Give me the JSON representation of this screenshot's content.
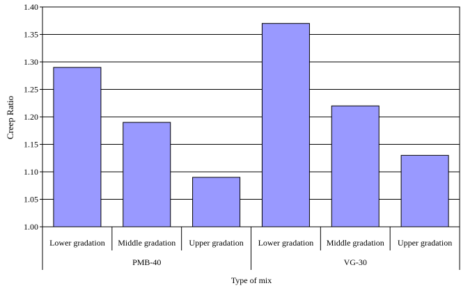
{
  "chart_data": {
    "type": "bar",
    "ylabel": "Creep Ratio",
    "xlabel": "Type of mix",
    "ylim": [
      1.0,
      1.4
    ],
    "ytick_step": 0.05,
    "grid": true,
    "bar_color": "#9999ff",
    "groups": [
      {
        "name": "PMB-40",
        "categories": [
          "Lower gradation",
          "Middle gradation",
          "Upper gradation"
        ],
        "values": [
          1.29,
          1.19,
          1.09
        ]
      },
      {
        "name": "VG-30",
        "categories": [
          "Lower gradation",
          "Middle gradation",
          "Upper gradation"
        ],
        "values": [
          1.37,
          1.22,
          1.13
        ]
      }
    ]
  }
}
